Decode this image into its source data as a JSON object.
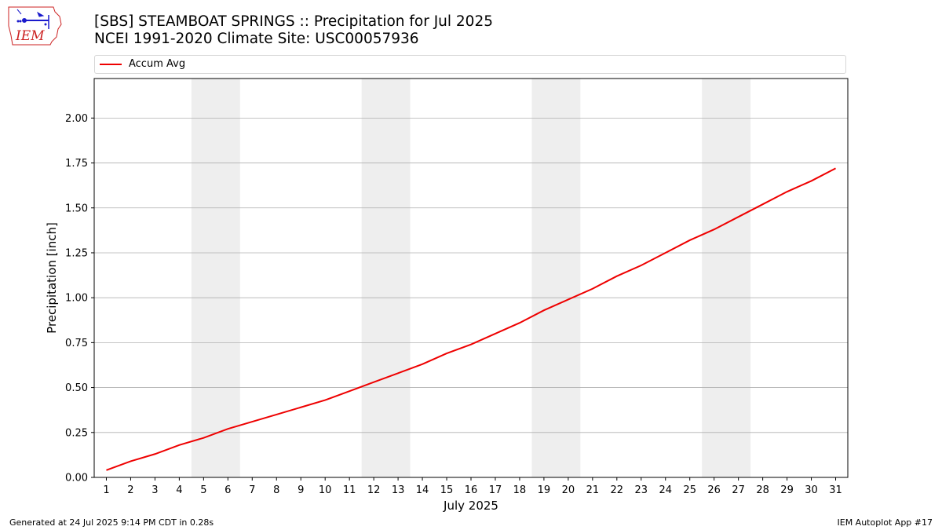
{
  "header": {
    "title_line1": "[SBS] STEAMBOAT SPRINGS :: Precipitation for Jul 2025",
    "title_line2": "NCEI 1991-2020 Climate Site: USC00057936"
  },
  "logo": {
    "text": "IEM",
    "icon": "iem-iowa-logo-icon"
  },
  "footer": {
    "left": "Generated at 24 Jul 2025 9:14 PM CDT in 0.28s",
    "right": "IEM Autoplot App #17"
  },
  "colors": {
    "series": "#ee0000",
    "weekend_band": "#eeeeee",
    "grid": "#b0b0b0",
    "logo_blue": "#1a1acc",
    "logo_red": "#cc2222"
  },
  "chart_data": {
    "type": "line",
    "xlabel": "July 2025",
    "ylabel": "Precipitation [inch]",
    "x": [
      1,
      2,
      3,
      4,
      5,
      6,
      7,
      8,
      9,
      10,
      11,
      12,
      13,
      14,
      15,
      16,
      17,
      18,
      19,
      20,
      21,
      22,
      23,
      24,
      25,
      26,
      27,
      28,
      29,
      30,
      31
    ],
    "xlim": [
      0.5,
      31.5
    ],
    "ylim": [
      0,
      2.22
    ],
    "yticks": [
      0.0,
      0.25,
      0.5,
      0.75,
      1.0,
      1.25,
      1.5,
      1.75,
      2.0
    ],
    "ytick_labels": [
      "0.00",
      "0.25",
      "0.50",
      "0.75",
      "1.00",
      "1.25",
      "1.50",
      "1.75",
      "2.00"
    ],
    "xtick_labels": [
      "1",
      "2",
      "3",
      "4",
      "5",
      "6",
      "7",
      "8",
      "9",
      "10",
      "11",
      "12",
      "13",
      "14",
      "15",
      "16",
      "17",
      "18",
      "19",
      "20",
      "21",
      "22",
      "23",
      "24",
      "25",
      "26",
      "27",
      "28",
      "29",
      "30",
      "31"
    ],
    "grid": "horizontal",
    "legend_position": "top",
    "weekend_bands": [
      [
        5,
        6
      ],
      [
        12,
        13
      ],
      [
        19,
        20
      ],
      [
        26,
        27
      ]
    ],
    "series": [
      {
        "name": "Accum Avg",
        "values": [
          0.04,
          0.09,
          0.13,
          0.18,
          0.22,
          0.27,
          0.31,
          0.35,
          0.39,
          0.43,
          0.48,
          0.53,
          0.58,
          0.63,
          0.69,
          0.74,
          0.8,
          0.86,
          0.93,
          0.99,
          1.05,
          1.12,
          1.18,
          1.25,
          1.32,
          1.38,
          1.45,
          1.52,
          1.59,
          1.65,
          1.72
        ]
      }
    ]
  }
}
